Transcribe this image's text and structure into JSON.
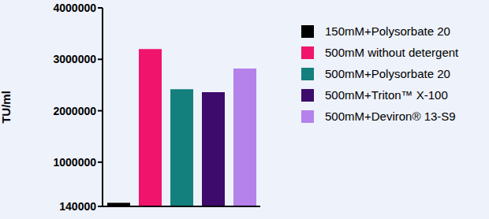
{
  "chart_data": {
    "type": "bar",
    "y_label": "TU/ml",
    "categories": [
      "150mM+Polysorbate 20",
      "500mM without detergent",
      "500mM+Polysorbate 20",
      "500mM+Triton™ X-100",
      "500mM+Deviron® 13-S9"
    ],
    "values": [
      210000,
      3200000,
      2420000,
      2360000,
      2820000
    ],
    "colors": [
      "#000000",
      "#f0146c",
      "#13807e",
      "#3d0b6b",
      "#b482ea"
    ],
    "ylim": [
      140000,
      4000000
    ],
    "yticks": [
      140000,
      1000000,
      2000000,
      3000000,
      4000000
    ],
    "grid": false,
    "legend": "right",
    "tick_labels": "y"
  }
}
